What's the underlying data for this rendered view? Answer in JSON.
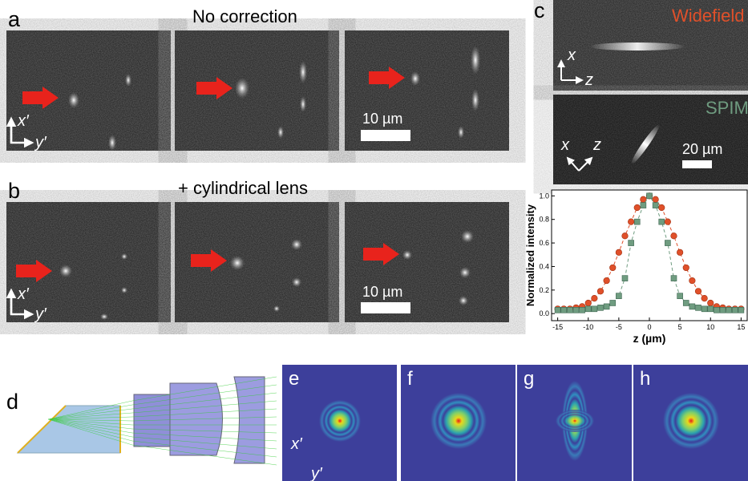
{
  "panels": {
    "a": {
      "label": "a",
      "title": "No correction",
      "scale_bar": "10 µm",
      "axis_x": "x′",
      "axis_y": "y′"
    },
    "b": {
      "label": "b",
      "title": "+ cylindrical lens",
      "scale_bar": "10 µm",
      "axis_x": "x′",
      "axis_y": "y′"
    },
    "c": {
      "label": "c",
      "top_axis_x": "x",
      "top_axis_z": "z",
      "bottom_axis_x": "x",
      "bottom_axis_z": "z",
      "scale_bar": "20 µm"
    },
    "d": {
      "label": "d"
    },
    "e": {
      "label": "e",
      "axis_x": "x′",
      "axis_y": "y′"
    },
    "f": {
      "label": "f"
    },
    "g": {
      "label": "g"
    },
    "h": {
      "label": "h"
    }
  },
  "chart_data": {
    "type": "line",
    "xlabel": "z (µm)",
    "ylabel": "Normalized intensity",
    "x": [
      -15,
      -14,
      -13,
      -12,
      -11,
      -10,
      -9,
      -8,
      -7,
      -6,
      -5,
      -4,
      -3,
      -2,
      -1,
      0,
      1,
      2,
      3,
      4,
      5,
      6,
      7,
      8,
      9,
      10,
      11,
      12,
      13,
      14,
      15
    ],
    "series": [
      {
        "name": "Widefield",
        "color": "#e0502a",
        "marker": "circle",
        "linestyle": "dashed",
        "values": [
          0.04,
          0.04,
          0.04,
          0.05,
          0.06,
          0.09,
          0.13,
          0.19,
          0.28,
          0.39,
          0.52,
          0.66,
          0.78,
          0.9,
          0.97,
          1.0,
          0.97,
          0.9,
          0.78,
          0.66,
          0.52,
          0.39,
          0.28,
          0.19,
          0.13,
          0.09,
          0.06,
          0.05,
          0.04,
          0.04,
          0.04
        ]
      },
      {
        "name": "SPIM",
        "color": "#6f9c80",
        "marker": "square",
        "linestyle": "dashed",
        "values": [
          0.03,
          0.03,
          0.03,
          0.03,
          0.03,
          0.04,
          0.04,
          0.05,
          0.06,
          0.09,
          0.15,
          0.3,
          0.6,
          0.78,
          0.92,
          1.0,
          0.92,
          0.78,
          0.6,
          0.3,
          0.15,
          0.09,
          0.06,
          0.05,
          0.04,
          0.04,
          0.03,
          0.03,
          0.03,
          0.03,
          0.03
        ]
      }
    ],
    "xlim": [
      -16,
      16
    ],
    "ylim": [
      -0.06,
      1.05
    ],
    "xticks": [
      -15,
      -10,
      -5,
      0,
      5,
      10,
      15
    ],
    "yticks": [
      {
        "value": 0,
        "label": "0.0"
      },
      {
        "value": 0.2,
        "label": "0.2"
      },
      {
        "value": 0.4,
        "label": "0.4"
      },
      {
        "value": 0.6,
        "label": "0.6"
      },
      {
        "value": 0.8,
        "label": "0.8"
      },
      {
        "value": 1.0,
        "label": "1.0"
      }
    ]
  }
}
